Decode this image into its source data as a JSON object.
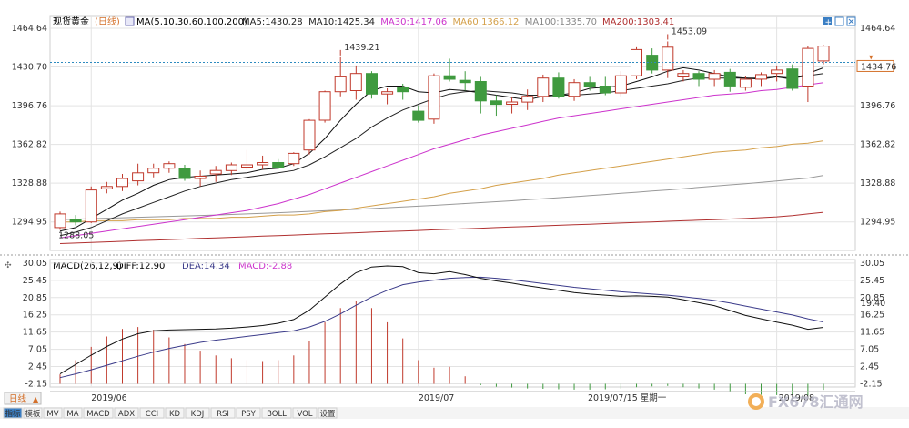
{
  "header": {
    "instrument": "现货黄金",
    "period": "(日线)",
    "ma_params": "MA(5,10,30,60,100,200)",
    "ma_values": [
      {
        "label": "MA5:1430.28",
        "color": "#222222"
      },
      {
        "label": "MA10:1425.34",
        "color": "#222222"
      },
      {
        "label": "MA30:1417.06",
        "color": "#cc33cc"
      },
      {
        "label": "MA60:1366.12",
        "color": "#d4a04a"
      },
      {
        "label": "MA100:1335.70",
        "color": "#888888"
      },
      {
        "label": "MA200:1303.41",
        "color": "#b03030"
      }
    ]
  },
  "macd_header": {
    "params": "MACD(26,12,9)",
    "diff": "DIFF:12.90",
    "dea": "DEA:14.34",
    "macd": "MACD:-2.88"
  },
  "current_price_label": "1434.76",
  "macd_current_label": "19.40",
  "tooltip_date": "2019/07/15 星期一",
  "period_button": "日线",
  "watermark": "FX678汇通网",
  "bottom_tabs": [
    "指标",
    "模板",
    "MV",
    "MA",
    "MACD",
    "ADX",
    "CCI",
    "KD",
    "KDJ",
    "RSI",
    "PSY",
    "BOLL",
    "VOL",
    "设置"
  ],
  "colors": {
    "up": "#c0392b",
    "down": "#3f9a3f",
    "ma5": "#111111",
    "ma10": "#222222",
    "ma30": "#cc33cc",
    "ma60": "#d4a04a",
    "ma100": "#999999",
    "ma200": "#b03030",
    "dif": "#111111",
    "dea": "#3b3b8a",
    "grid": "#e3e3e3",
    "dotted": "#2e8bbf"
  },
  "chart_data": [
    {
      "type": "candlestick",
      "y_ticks": [
        1464.64,
        1430.7,
        1396.76,
        1362.82,
        1328.88,
        1294.95
      ],
      "ylim": [
        1270,
        1475
      ],
      "x_labels": [
        {
          "index": 2,
          "label": "2019/06"
        },
        {
          "index": 23,
          "label": "2019/07"
        },
        {
          "index": 46,
          "label": "2019/08"
        }
      ],
      "annotations": [
        {
          "index": 18,
          "value": 1439.21,
          "label": "1439.21"
        },
        {
          "index": 39,
          "value": 1453.09,
          "label": "1453.09"
        },
        {
          "index": 0,
          "value": 1288.05,
          "label": "1288.05"
        }
      ],
      "candles": [
        {
          "o": 1290,
          "h": 1304,
          "l": 1288.05,
          "c": 1302
        },
        {
          "o": 1297,
          "h": 1301,
          "l": 1292,
          "c": 1295
        },
        {
          "o": 1295,
          "h": 1326,
          "l": 1294,
          "c": 1323
        },
        {
          "o": 1324,
          "h": 1330,
          "l": 1320,
          "c": 1326
        },
        {
          "o": 1326,
          "h": 1337,
          "l": 1322,
          "c": 1333
        },
        {
          "o": 1331,
          "h": 1346,
          "l": 1327,
          "c": 1338
        },
        {
          "o": 1338,
          "h": 1346,
          "l": 1334,
          "c": 1342
        },
        {
          "o": 1342,
          "h": 1348,
          "l": 1338,
          "c": 1346
        },
        {
          "o": 1342,
          "h": 1345,
          "l": 1331,
          "c": 1333
        },
        {
          "o": 1333,
          "h": 1340,
          "l": 1326,
          "c": 1335
        },
        {
          "o": 1337,
          "h": 1344,
          "l": 1330,
          "c": 1340
        },
        {
          "o": 1340,
          "h": 1347,
          "l": 1336,
          "c": 1345
        },
        {
          "o": 1343,
          "h": 1358,
          "l": 1340,
          "c": 1345
        },
        {
          "o": 1345,
          "h": 1353,
          "l": 1341,
          "c": 1347
        },
        {
          "o": 1347,
          "h": 1350,
          "l": 1341,
          "c": 1343
        },
        {
          "o": 1346,
          "h": 1356,
          "l": 1344,
          "c": 1355
        },
        {
          "o": 1358,
          "h": 1385,
          "l": 1354,
          "c": 1384
        },
        {
          "o": 1384,
          "h": 1410,
          "l": 1382,
          "c": 1409
        },
        {
          "o": 1409,
          "h": 1439.21,
          "l": 1405,
          "c": 1422
        },
        {
          "o": 1410,
          "h": 1432,
          "l": 1402,
          "c": 1425
        },
        {
          "o": 1425,
          "h": 1427,
          "l": 1403,
          "c": 1407
        },
        {
          "o": 1407,
          "h": 1412,
          "l": 1398,
          "c": 1409
        },
        {
          "o": 1413,
          "h": 1416,
          "l": 1402,
          "c": 1409
        },
        {
          "o": 1392,
          "h": 1397,
          "l": 1382,
          "c": 1384
        },
        {
          "o": 1385,
          "h": 1425,
          "l": 1381,
          "c": 1423
        },
        {
          "o": 1423,
          "h": 1438,
          "l": 1418,
          "c": 1420
        },
        {
          "o": 1419,
          "h": 1427,
          "l": 1410,
          "c": 1417
        },
        {
          "o": 1418,
          "h": 1422,
          "l": 1390,
          "c": 1401
        },
        {
          "o": 1401,
          "h": 1406,
          "l": 1388,
          "c": 1398
        },
        {
          "o": 1398,
          "h": 1404,
          "l": 1390,
          "c": 1400
        },
        {
          "o": 1400,
          "h": 1411,
          "l": 1393,
          "c": 1405
        },
        {
          "o": 1405,
          "h": 1424,
          "l": 1400,
          "c": 1421
        },
        {
          "o": 1421,
          "h": 1426,
          "l": 1403,
          "c": 1405
        },
        {
          "o": 1405,
          "h": 1420,
          "l": 1401,
          "c": 1417
        },
        {
          "o": 1417,
          "h": 1422,
          "l": 1410,
          "c": 1414
        },
        {
          "o": 1414,
          "h": 1422,
          "l": 1406,
          "c": 1408
        },
        {
          "o": 1408,
          "h": 1427,
          "l": 1405,
          "c": 1423
        },
        {
          "o": 1423,
          "h": 1448,
          "l": 1420,
          "c": 1446
        },
        {
          "o": 1441,
          "h": 1447,
          "l": 1425,
          "c": 1428
        },
        {
          "o": 1428,
          "h": 1453.09,
          "l": 1421,
          "c": 1448
        },
        {
          "o": 1422,
          "h": 1428,
          "l": 1418,
          "c": 1425
        },
        {
          "o": 1425,
          "h": 1427,
          "l": 1414,
          "c": 1420
        },
        {
          "o": 1420,
          "h": 1428,
          "l": 1414,
          "c": 1425
        },
        {
          "o": 1426,
          "h": 1429,
          "l": 1409,
          "c": 1414
        },
        {
          "o": 1413,
          "h": 1423,
          "l": 1410,
          "c": 1420
        },
        {
          "o": 1420,
          "h": 1426,
          "l": 1414,
          "c": 1424
        },
        {
          "o": 1425,
          "h": 1432,
          "l": 1418,
          "c": 1428
        },
        {
          "o": 1429,
          "h": 1433,
          "l": 1410,
          "c": 1412
        },
        {
          "o": 1414,
          "h": 1449,
          "l": 1400,
          "c": 1447
        },
        {
          "o": 1436,
          "h": 1450,
          "l": 1433,
          "c": 1449
        }
      ],
      "ma_lines": {
        "ma5": [
          1287,
          1290,
          1298,
          1306,
          1314,
          1320,
          1327,
          1332,
          1334,
          1335,
          1336,
          1337,
          1338,
          1341,
          1342,
          1346,
          1355,
          1368,
          1384,
          1398,
          1410,
          1414,
          1414,
          1409,
          1408,
          1411,
          1410,
          1408,
          1406,
          1404,
          1402,
          1405,
          1406,
          1408,
          1412,
          1413,
          1414,
          1418,
          1422,
          1427,
          1430,
          1428,
          1425,
          1422,
          1421,
          1420,
          1422,
          1420,
          1425,
          1430
        ],
        "ma10": [
          1283,
          1286,
          1290,
          1296,
          1302,
          1307,
          1312,
          1317,
          1322,
          1326,
          1329,
          1332,
          1334,
          1336,
          1338,
          1340,
          1345,
          1352,
          1360,
          1368,
          1378,
          1386,
          1393,
          1398,
          1403,
          1407,
          1409,
          1410,
          1409,
          1408,
          1406,
          1406,
          1406,
          1406,
          1407,
          1408,
          1410,
          1412,
          1414,
          1416,
          1419,
          1421,
          1421,
          1421,
          1421,
          1421,
          1422,
          1421,
          1423,
          1425
        ],
        "ma30": [
          1281,
          1283,
          1285,
          1287,
          1289,
          1291,
          1293,
          1295,
          1297,
          1299,
          1301,
          1303,
          1305,
          1308,
          1311,
          1315,
          1319,
          1324,
          1329,
          1334,
          1339,
          1344,
          1349,
          1354,
          1359,
          1363,
          1367,
          1371,
          1374,
          1377,
          1380,
          1383,
          1386,
          1388,
          1390,
          1392,
          1394,
          1396,
          1398,
          1400,
          1402,
          1404,
          1406,
          1407,
          1408,
          1410,
          1411,
          1413,
          1415,
          1417
        ],
        "ma60": [
          1295,
          1295,
          1296,
          1296,
          1296,
          1297,
          1297,
          1297,
          1298,
          1298,
          1298,
          1299,
          1299,
          1300,
          1301,
          1301,
          1302,
          1304,
          1305,
          1307,
          1309,
          1311,
          1313,
          1315,
          1317,
          1320,
          1322,
          1324,
          1327,
          1329,
          1331,
          1333,
          1336,
          1338,
          1340,
          1342,
          1344,
          1346,
          1348,
          1350,
          1352,
          1354,
          1356,
          1357,
          1358,
          1360,
          1361,
          1363,
          1364,
          1366
        ],
        "ma100": [
          1297,
          1297.4,
          1297.8,
          1298.2,
          1298.6,
          1299,
          1299.4,
          1299.8,
          1300.2,
          1300.6,
          1301,
          1301.5,
          1302,
          1302.5,
          1303,
          1303.6,
          1304.2,
          1304.8,
          1305.4,
          1306,
          1306.7,
          1307.4,
          1308.1,
          1308.8,
          1309.5,
          1310.3,
          1311.1,
          1311.9,
          1312.7,
          1313.5,
          1314.4,
          1315.3,
          1316.2,
          1317.1,
          1318,
          1319,
          1320,
          1321,
          1322,
          1323,
          1324.1,
          1325.2,
          1326.3,
          1327.4,
          1328.5,
          1329.7,
          1330.9,
          1332.1,
          1333.3,
          1335.7
        ],
        "ma200": [
          1276,
          1276.5,
          1277,
          1277.5,
          1278,
          1278.5,
          1279,
          1279.5,
          1280,
          1280.5,
          1281,
          1281.5,
          1282,
          1282.5,
          1283,
          1283.5,
          1284,
          1284.5,
          1285,
          1285.5,
          1286,
          1286.5,
          1287,
          1287.5,
          1288,
          1288.5,
          1289,
          1289.5,
          1290,
          1290.5,
          1291,
          1291.5,
          1292,
          1292.5,
          1293,
          1293.5,
          1294,
          1294.5,
          1295,
          1295.5,
          1296,
          1296.5,
          1297,
          1297.5,
          1298,
          1298.7,
          1299.4,
          1300.5,
          1302,
          1303.41
        ]
      }
    },
    {
      "type": "macd",
      "y_ticks": [
        30.05,
        25.45,
        20.85,
        16.25,
        11.65,
        7.05,
        2.45,
        -2.15
      ],
      "ylim": [
        -3,
        31
      ],
      "dif": [
        0.5,
        3,
        5.5,
        7.8,
        9.8,
        11.2,
        12,
        12.2,
        12.3,
        12.4,
        12.5,
        12.7,
        13,
        13.4,
        14,
        15,
        17.5,
        21,
        24.5,
        27.5,
        29,
        29.3,
        29.1,
        27.5,
        27.2,
        27.8,
        27,
        26,
        25.3,
        24.7,
        24,
        23.4,
        22.8,
        22.2,
        21.8,
        21.5,
        21.2,
        21.3,
        21.2,
        21,
        20.3,
        19.5,
        18.7,
        17.4,
        16.1,
        15.2,
        14.3,
        13.5,
        12.4,
        12.9
      ],
      "dea": [
        -0.5,
        0.5,
        1.6,
        2.8,
        4,
        5.2,
        6.3,
        7.3,
        8.1,
        8.9,
        9.5,
        10,
        10.5,
        11,
        11.5,
        12,
        13,
        14.5,
        16.5,
        18.8,
        21,
        22.8,
        24.3,
        25,
        25.5,
        26,
        26.2,
        26.3,
        26,
        25.6,
        25.1,
        24.6,
        24.1,
        23.6,
        23.2,
        22.8,
        22.4,
        22.1,
        21.8,
        21.5,
        21.1,
        20.6,
        20.1,
        19.4,
        18.6,
        17.8,
        17,
        16.2,
        15.2,
        14.34
      ],
      "hist": [
        2,
        5,
        7.8,
        10,
        11.6,
        12,
        11.4,
        9.8,
        8.4,
        7,
        6,
        5.4,
        5,
        4.8,
        5,
        6,
        9,
        13,
        16,
        17.4,
        16,
        13,
        9.6,
        5,
        3.4,
        3.6,
        1.6,
        -0.6,
        -1.4,
        -1.8,
        -2.2,
        -2.4,
        -2.6,
        -2.8,
        -2.8,
        -2.6,
        -2.4,
        -1.6,
        -1.2,
        -1,
        -1.6,
        -2.2,
        -2.8,
        -4,
        -5,
        -5.2,
        -5.4,
        -5.4,
        -5.6,
        -2.88
      ]
    }
  ]
}
